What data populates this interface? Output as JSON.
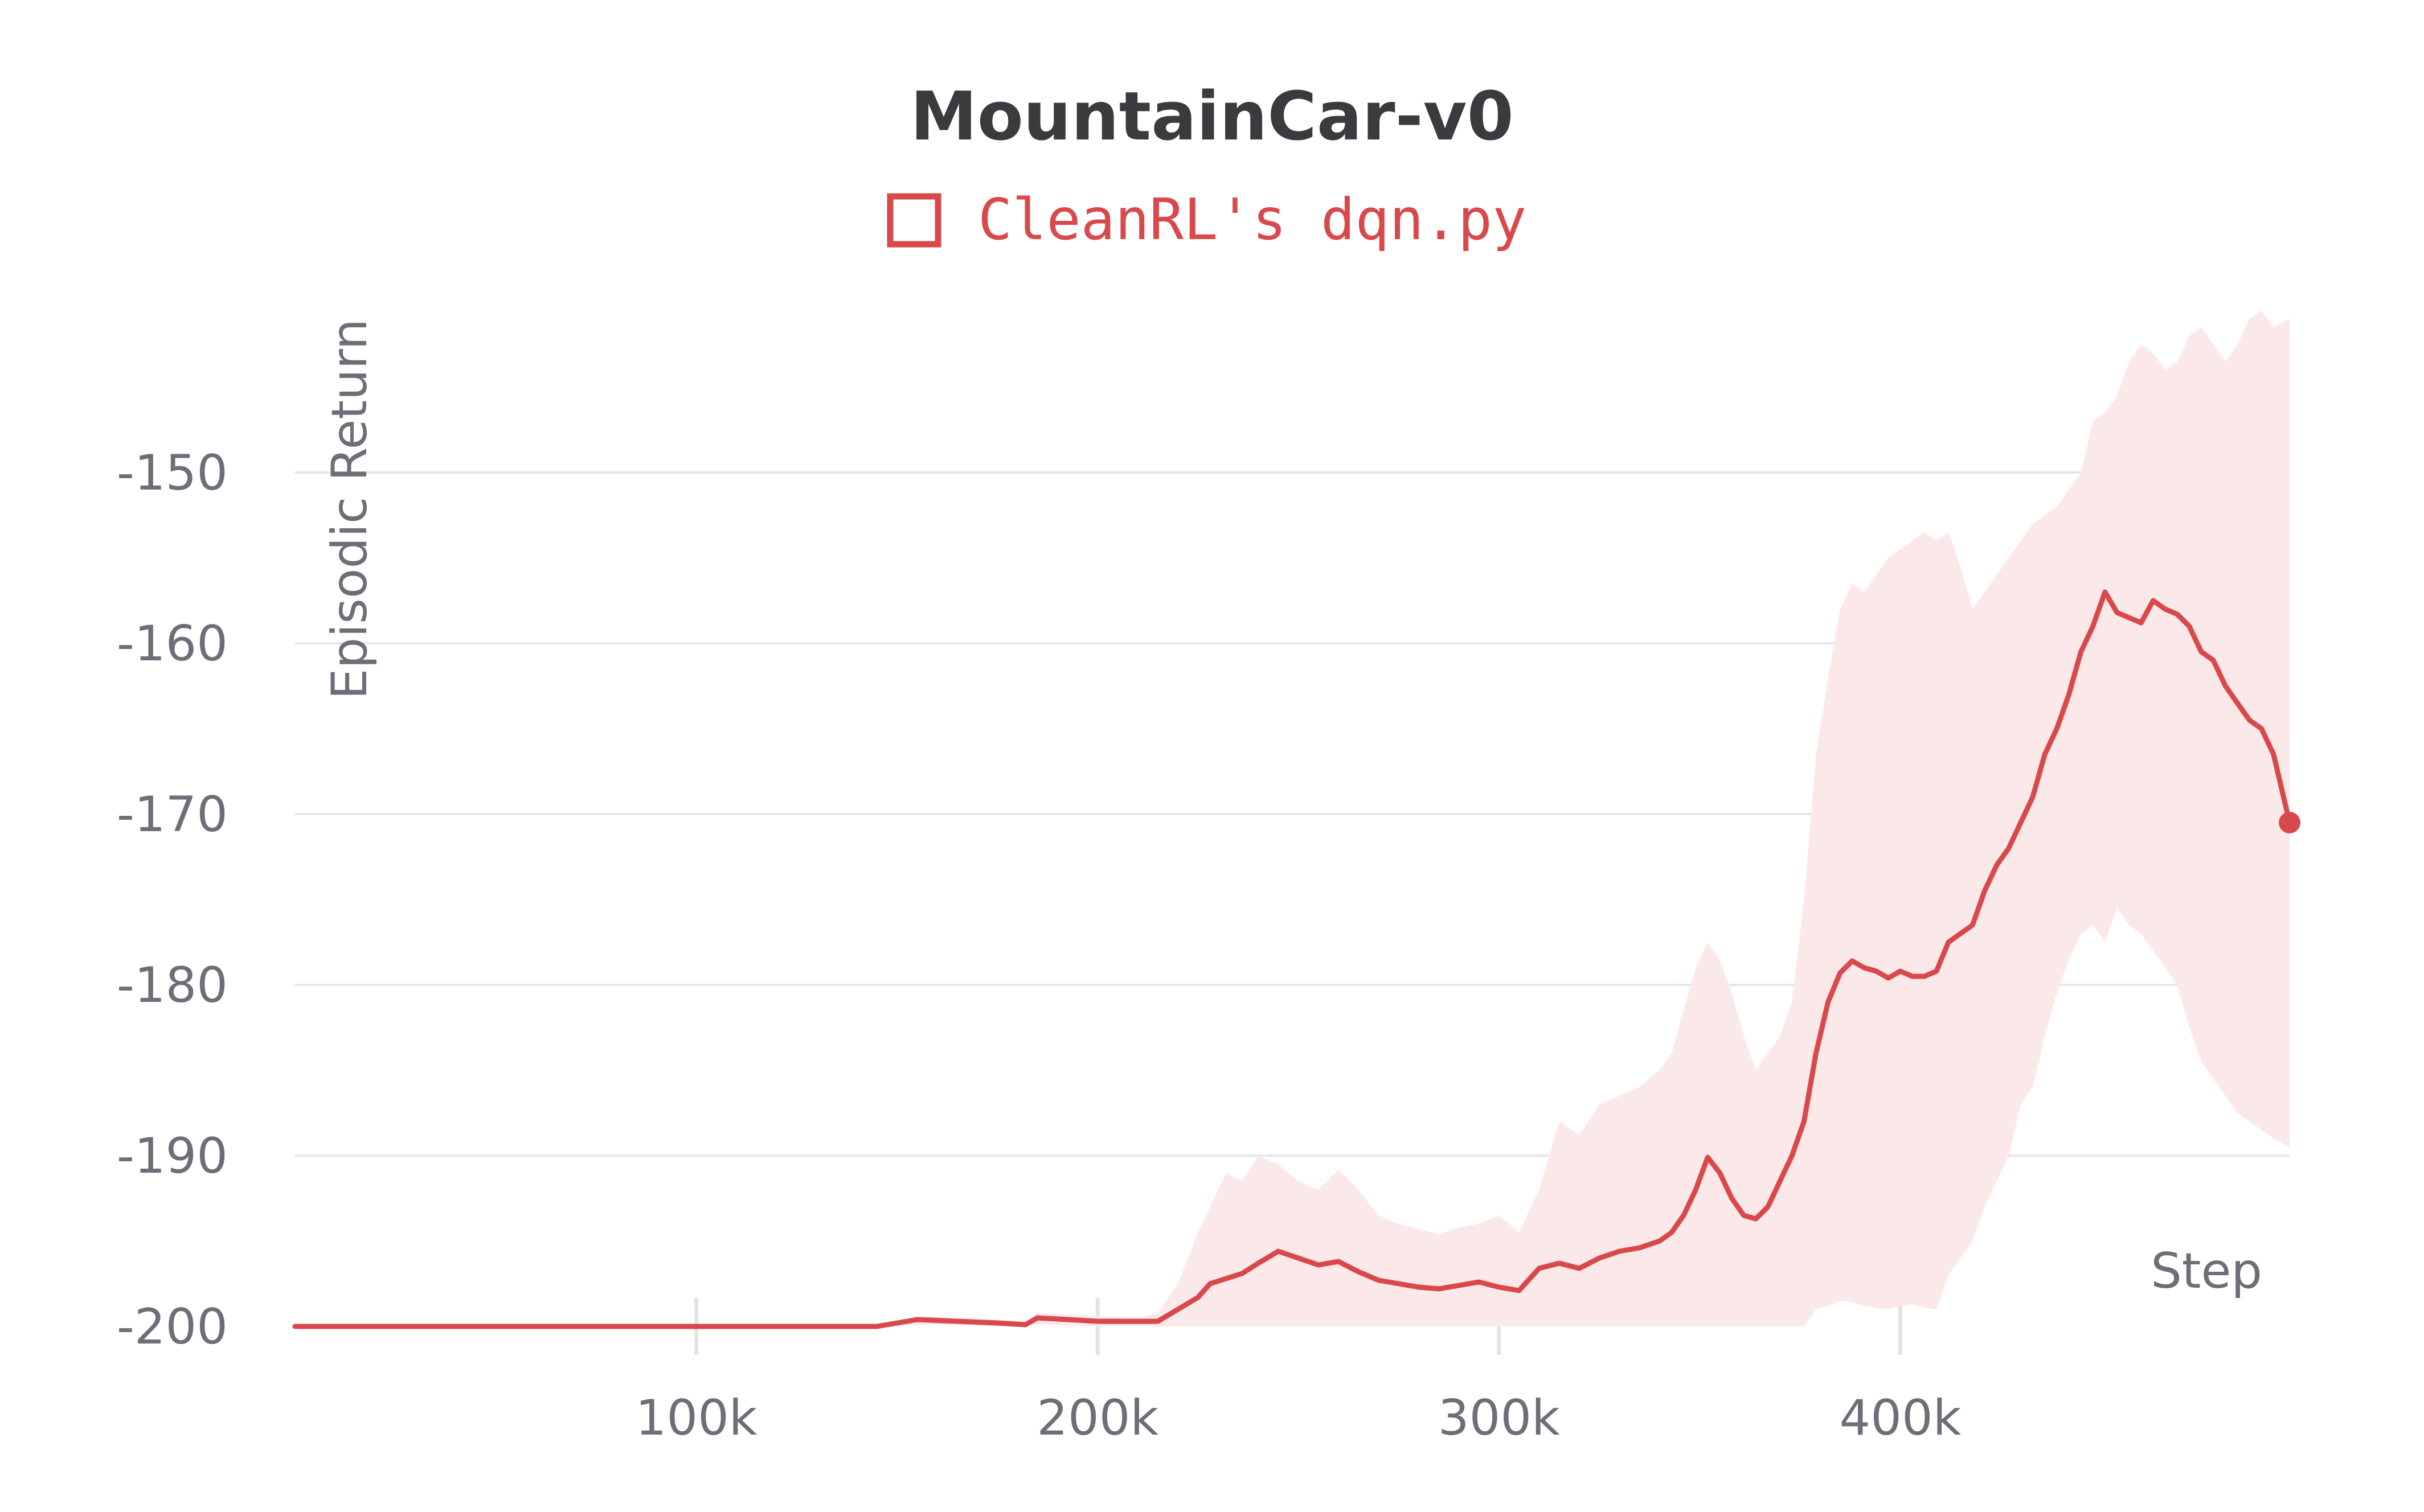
{
  "chart_data": {
    "type": "line",
    "title": "MountainCar-v0",
    "xlabel": "Step",
    "ylabel": "Episodic Return",
    "xlim": [
      0,
      497000
    ],
    "ylim": [
      -200,
      -139
    ],
    "x_ticks": [
      100000,
      200000,
      300000,
      400000
    ],
    "x_tick_labels": [
      "100k",
      "200k",
      "300k",
      "400k"
    ],
    "y_ticks": [
      -200,
      -190,
      -180,
      -170,
      -160,
      -150
    ],
    "y_tick_labels": [
      "-200",
      "-190",
      "-180",
      "-170",
      "-160",
      "-150"
    ],
    "grid": true,
    "legend_position": "top-center",
    "colors": {
      "series": "#d9484b",
      "band": "#fbe9ea"
    },
    "series": [
      {
        "name": "CleanRL's dqn.py",
        "x": [
          0,
          50000,
          100000,
          145000,
          150000,
          155000,
          165000,
          175000,
          182000,
          185000,
          200000,
          210000,
          215000,
          220000,
          225000,
          228000,
          232000,
          236000,
          240000,
          245000,
          250000,
          255000,
          260000,
          265000,
          270000,
          275000,
          280000,
          285000,
          290000,
          295000,
          300000,
          305000,
          310000,
          315000,
          320000,
          325000,
          330000,
          335000,
          340000,
          343000,
          346000,
          349000,
          352000,
          355000,
          358000,
          361000,
          364000,
          367000,
          370000,
          373000,
          376000,
          379000,
          382000,
          385000,
          388000,
          391000,
          394000,
          397000,
          400000,
          403000,
          406000,
          409000,
          412000,
          415000,
          418000,
          421000,
          424000,
          427000,
          430000,
          433000,
          436000,
          439000,
          442000,
          445000,
          448000,
          451000,
          454000,
          457000,
          460000,
          463000,
          466000,
          469000,
          472000,
          475000,
          478000,
          481000,
          484000,
          487000,
          490000,
          493000,
          497000
        ],
        "values": [
          -200,
          -200,
          -200,
          -200,
          -199.8,
          -199.6,
          -199.7,
          -199.8,
          -199.9,
          -199.5,
          -199.7,
          -199.7,
          -199.7,
          -199.0,
          -198.3,
          -197.5,
          -197.2,
          -196.9,
          -196.3,
          -195.6,
          -196.0,
          -196.4,
          -196.2,
          -196.8,
          -197.3,
          -197.5,
          -197.7,
          -197.8,
          -197.6,
          -197.4,
          -197.7,
          -197.9,
          -196.6,
          -196.3,
          -196.6,
          -196.0,
          -195.6,
          -195.4,
          -195.0,
          -194.5,
          -193.5,
          -192.0,
          -190.1,
          -191.0,
          -192.5,
          -193.5,
          -193.7,
          -193.0,
          -191.5,
          -190.0,
          -188.0,
          -184.0,
          -181.0,
          -179.3,
          -178.6,
          -179.0,
          -179.2,
          -179.6,
          -179.2,
          -179.5,
          -179.5,
          -179.2,
          -177.5,
          -177.0,
          -176.5,
          -174.5,
          -173.0,
          -172.0,
          -170.5,
          -169.0,
          -166.5,
          -165.0,
          -163.0,
          -160.5,
          -159.0,
          -157.0,
          -158.2,
          -158.5,
          -158.8,
          -157.5,
          -158.0,
          -158.3,
          -159.0,
          -160.5,
          -161.0,
          -162.5,
          -163.5,
          -164.5,
          -165.0,
          -166.5,
          -170.5
        ],
        "upper": [
          -200,
          -200,
          -200,
          -200,
          -199.7,
          -199.4,
          -199.5,
          -199.6,
          -199.7,
          -199.2,
          -199.4,
          -199.5,
          -199.2,
          -197.5,
          -194.5,
          -193.0,
          -191.0,
          -191.5,
          -190.0,
          -190.5,
          -191.5,
          -192.0,
          -190.8,
          -192.0,
          -193.5,
          -194.0,
          -194.3,
          -194.6,
          -194.2,
          -194.0,
          -193.5,
          -194.5,
          -192.0,
          -188.0,
          -188.8,
          -187.0,
          -186.5,
          -186.0,
          -185.0,
          -184.0,
          -181.5,
          -179.0,
          -177.5,
          -178.5,
          -180.5,
          -183.0,
          -185.0,
          -184.0,
          -183.0,
          -181.0,
          -175.0,
          -166.5,
          -162.0,
          -158.0,
          -156.5,
          -157.0,
          -156.0,
          -155.0,
          -154.5,
          -154.0,
          -153.5,
          -154.0,
          -153.5,
          -155.5,
          -158.0,
          -157.0,
          -156.0,
          -155.0,
          -154.0,
          -153.0,
          -152.5,
          -152.0,
          -151.0,
          -150.0,
          -147.0,
          -146.5,
          -145.5,
          -143.5,
          -142.5,
          -143.0,
          -144.0,
          -143.5,
          -142.0,
          -141.5,
          -142.5,
          -143.5,
          -142.5,
          -141.0,
          -140.5,
          -141.5,
          -141.0
        ],
        "lower": [
          -200,
          -200,
          -200,
          -200,
          -200,
          -199.9,
          -199.9,
          -200,
          -200,
          -199.9,
          -200,
          -200,
          -200,
          -200,
          -200,
          -200,
          -200,
          -200,
          -200,
          -200,
          -200,
          -200,
          -200,
          -200,
          -200,
          -200,
          -200,
          -200,
          -200,
          -200,
          -200,
          -200,
          -200,
          -200,
          -200,
          -200,
          -200,
          -200,
          -200,
          -200,
          -200,
          -200,
          -200,
          -200,
          -200,
          -200,
          -200,
          -200,
          -200,
          -200,
          -200,
          -199.0,
          -198.8,
          -198.5,
          -198.6,
          -198.8,
          -198.9,
          -199.0,
          -198.8,
          -198.7,
          -198.9,
          -199.0,
          -197.0,
          -196.0,
          -195.0,
          -193.0,
          -191.5,
          -190.0,
          -187.0,
          -186.0,
          -183.0,
          -180.5,
          -178.5,
          -177.0,
          -176.5,
          -177.5,
          -175.5,
          -176.5,
          -177.0,
          -178.0,
          -179.0,
          -180.0,
          -182.5,
          -184.5,
          -185.5,
          -186.5,
          -187.5,
          -188.0,
          -188.5,
          -189.0,
          -189.5
        ]
      }
    ]
  }
}
